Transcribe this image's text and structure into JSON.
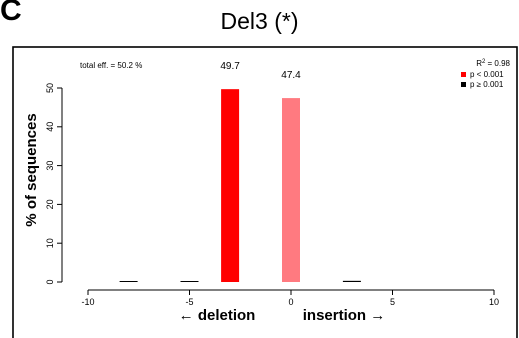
{
  "panel_label": "C",
  "chart_data": {
    "type": "bar",
    "title": "Del3 (*)",
    "xlabel_left": "← deletion",
    "xlabel_right": "insertion →",
    "ylabel": "% of sequences",
    "xlim": [
      -11,
      11
    ],
    "ylim": [
      0,
      55
    ],
    "xticks": [
      -10,
      -5,
      0,
      5,
      10
    ],
    "yticks": [
      0,
      10,
      20,
      30,
      40,
      50
    ],
    "x": [
      -8,
      -5,
      -3,
      0,
      3
    ],
    "values": [
      0.2,
      0.2,
      49.7,
      47.4,
      0.3
    ],
    "colors": [
      "#000000",
      "#000000",
      "#ff0000",
      "#ff7a80",
      "#000000"
    ],
    "data_labels": [
      "",
      "",
      "49.7",
      "47.4",
      ""
    ],
    "annotation": "total eff. = 50.2 %",
    "r_squared_label": "R",
    "r_squared_sup": "2",
    "r_squared_value": " = 0.98",
    "legend": [
      {
        "label": "p < 0.001",
        "color": "#ff0000"
      },
      {
        "label": "p ≥ 0.001",
        "color": "#000000"
      }
    ],
    "grid": false,
    "legend_position": "top-right"
  }
}
